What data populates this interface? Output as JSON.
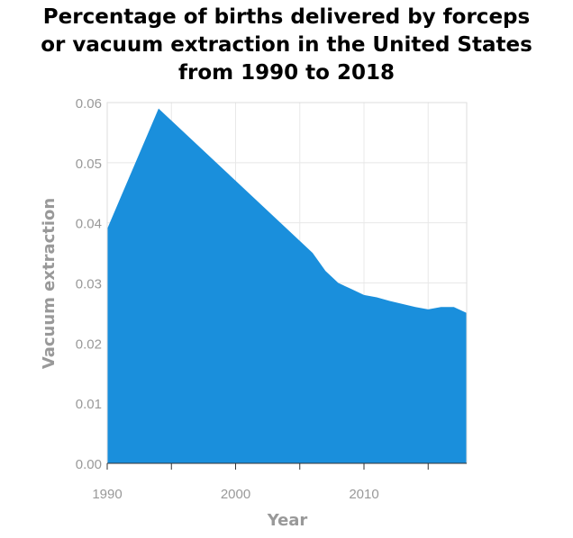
{
  "chart_data": {
    "type": "area",
    "title_lines": [
      "Percentage of births delivered by forceps",
      "or vacuum extraction in the United States",
      "from 1990 to 2018"
    ],
    "xlabel": "Year",
    "ylabel": "Vacuum extraction",
    "xlim": [
      1990,
      2018
    ],
    "ylim": [
      0,
      0.06
    ],
    "x_ticks": [
      1990,
      1995,
      2000,
      2005,
      2010,
      2015
    ],
    "x_tick_labels": [
      "1990",
      "",
      "2000",
      "",
      "2010",
      ""
    ],
    "y_ticks": [
      0,
      0.01,
      0.02,
      0.03,
      0.04,
      0.05,
      0.06
    ],
    "y_tick_labels": [
      "0.00",
      "0.01",
      "0.02",
      "0.03",
      "0.04",
      "0.05",
      "0.06"
    ],
    "grid": true,
    "color": "#1a8fdc",
    "series": [
      {
        "x": [
          1990,
          1991,
          1992,
          1993,
          1994,
          1995,
          1996,
          1997,
          1998,
          1999,
          2000,
          2001,
          2002,
          2003,
          2004,
          2005,
          2006,
          2007,
          2008,
          2009,
          2010,
          2011,
          2012,
          2013,
          2014,
          2015,
          2016,
          2017,
          2018
        ],
        "values": [
          0.039,
          0.044,
          0.049,
          0.054,
          0.059,
          0.057,
          0.055,
          0.053,
          0.051,
          0.049,
          0.047,
          0.045,
          0.043,
          0.041,
          0.039,
          0.037,
          0.035,
          0.032,
          0.03,
          0.029,
          0.028,
          0.0276,
          0.027,
          0.0265,
          0.026,
          0.0256,
          0.026,
          0.026,
          0.025
        ]
      }
    ]
  }
}
